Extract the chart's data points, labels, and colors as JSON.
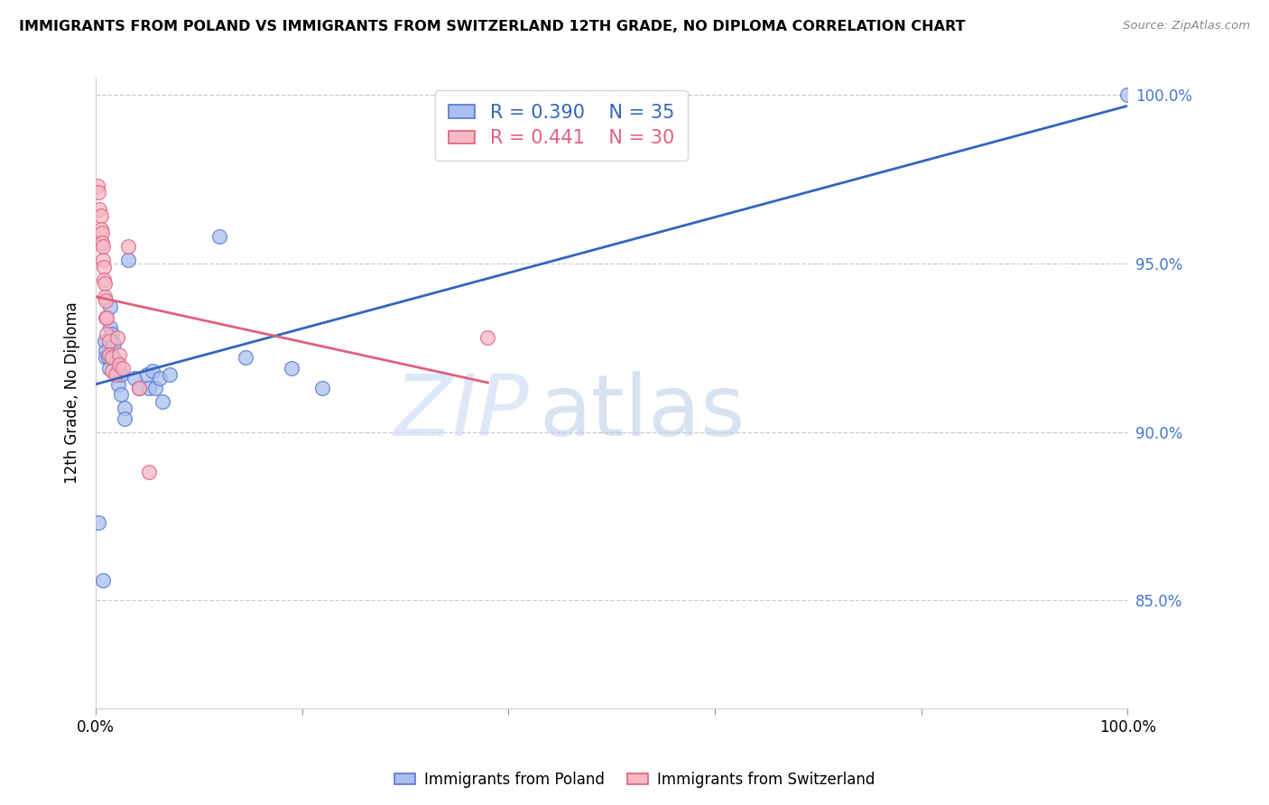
{
  "title": "IMMIGRANTS FROM POLAND VS IMMIGRANTS FROM SWITZERLAND 12TH GRADE, NO DIPLOMA CORRELATION CHART",
  "source": "Source: ZipAtlas.com",
  "ylabel": "12th Grade, No Diploma",
  "ylabel_right_labels": [
    "100.0%",
    "95.0%",
    "90.0%",
    "85.0%"
  ],
  "ylabel_right_values": [
    1.0,
    0.95,
    0.9,
    0.85
  ],
  "legend_blue_r": "0.390",
  "legend_blue_n": "35",
  "legend_pink_r": "0.441",
  "legend_pink_n": "30",
  "blue_fill_color": "#aabfee",
  "blue_edge_color": "#5577cc",
  "pink_fill_color": "#f5b8c4",
  "pink_edge_color": "#e06080",
  "blue_line_color": "#3366BB",
  "pink_line_color": "#e06080",
  "watermark_zip": "ZIP",
  "watermark_atlas": "atlas",
  "blue_scatter_x": [
    0.003,
    0.007,
    0.009,
    0.01,
    0.01,
    0.012,
    0.013,
    0.014,
    0.014,
    0.016,
    0.016,
    0.018,
    0.018,
    0.02,
    0.022,
    0.022,
    0.025,
    0.025,
    0.028,
    0.028,
    0.032,
    0.038,
    0.042,
    0.05,
    0.052,
    0.055,
    0.058,
    0.062,
    0.065,
    0.072,
    0.12,
    0.145,
    0.19,
    0.22,
    1.0
  ],
  "blue_scatter_y": [
    0.873,
    0.856,
    0.927,
    0.924,
    0.922,
    0.922,
    0.919,
    0.937,
    0.931,
    0.929,
    0.927,
    0.926,
    0.922,
    0.921,
    0.919,
    0.914,
    0.917,
    0.911,
    0.907,
    0.904,
    0.951,
    0.916,
    0.913,
    0.917,
    0.913,
    0.918,
    0.913,
    0.916,
    0.909,
    0.917,
    0.958,
    0.922,
    0.919,
    0.913,
    1.0
  ],
  "pink_scatter_x": [
    0.002,
    0.003,
    0.004,
    0.005,
    0.005,
    0.006,
    0.006,
    0.007,
    0.007,
    0.008,
    0.008,
    0.009,
    0.009,
    0.01,
    0.01,
    0.011,
    0.011,
    0.013,
    0.013,
    0.016,
    0.016,
    0.019,
    0.021,
    0.023,
    0.023,
    0.026,
    0.032,
    0.042,
    0.052,
    0.38
  ],
  "pink_scatter_y": [
    0.973,
    0.971,
    0.966,
    0.964,
    0.96,
    0.959,
    0.956,
    0.955,
    0.951,
    0.949,
    0.945,
    0.944,
    0.94,
    0.939,
    0.934,
    0.934,
    0.929,
    0.927,
    0.923,
    0.922,
    0.918,
    0.917,
    0.928,
    0.923,
    0.92,
    0.919,
    0.955,
    0.913,
    0.888,
    0.928
  ],
  "xlim": [
    0.0,
    1.0
  ],
  "ylim": [
    0.818,
    1.005
  ]
}
